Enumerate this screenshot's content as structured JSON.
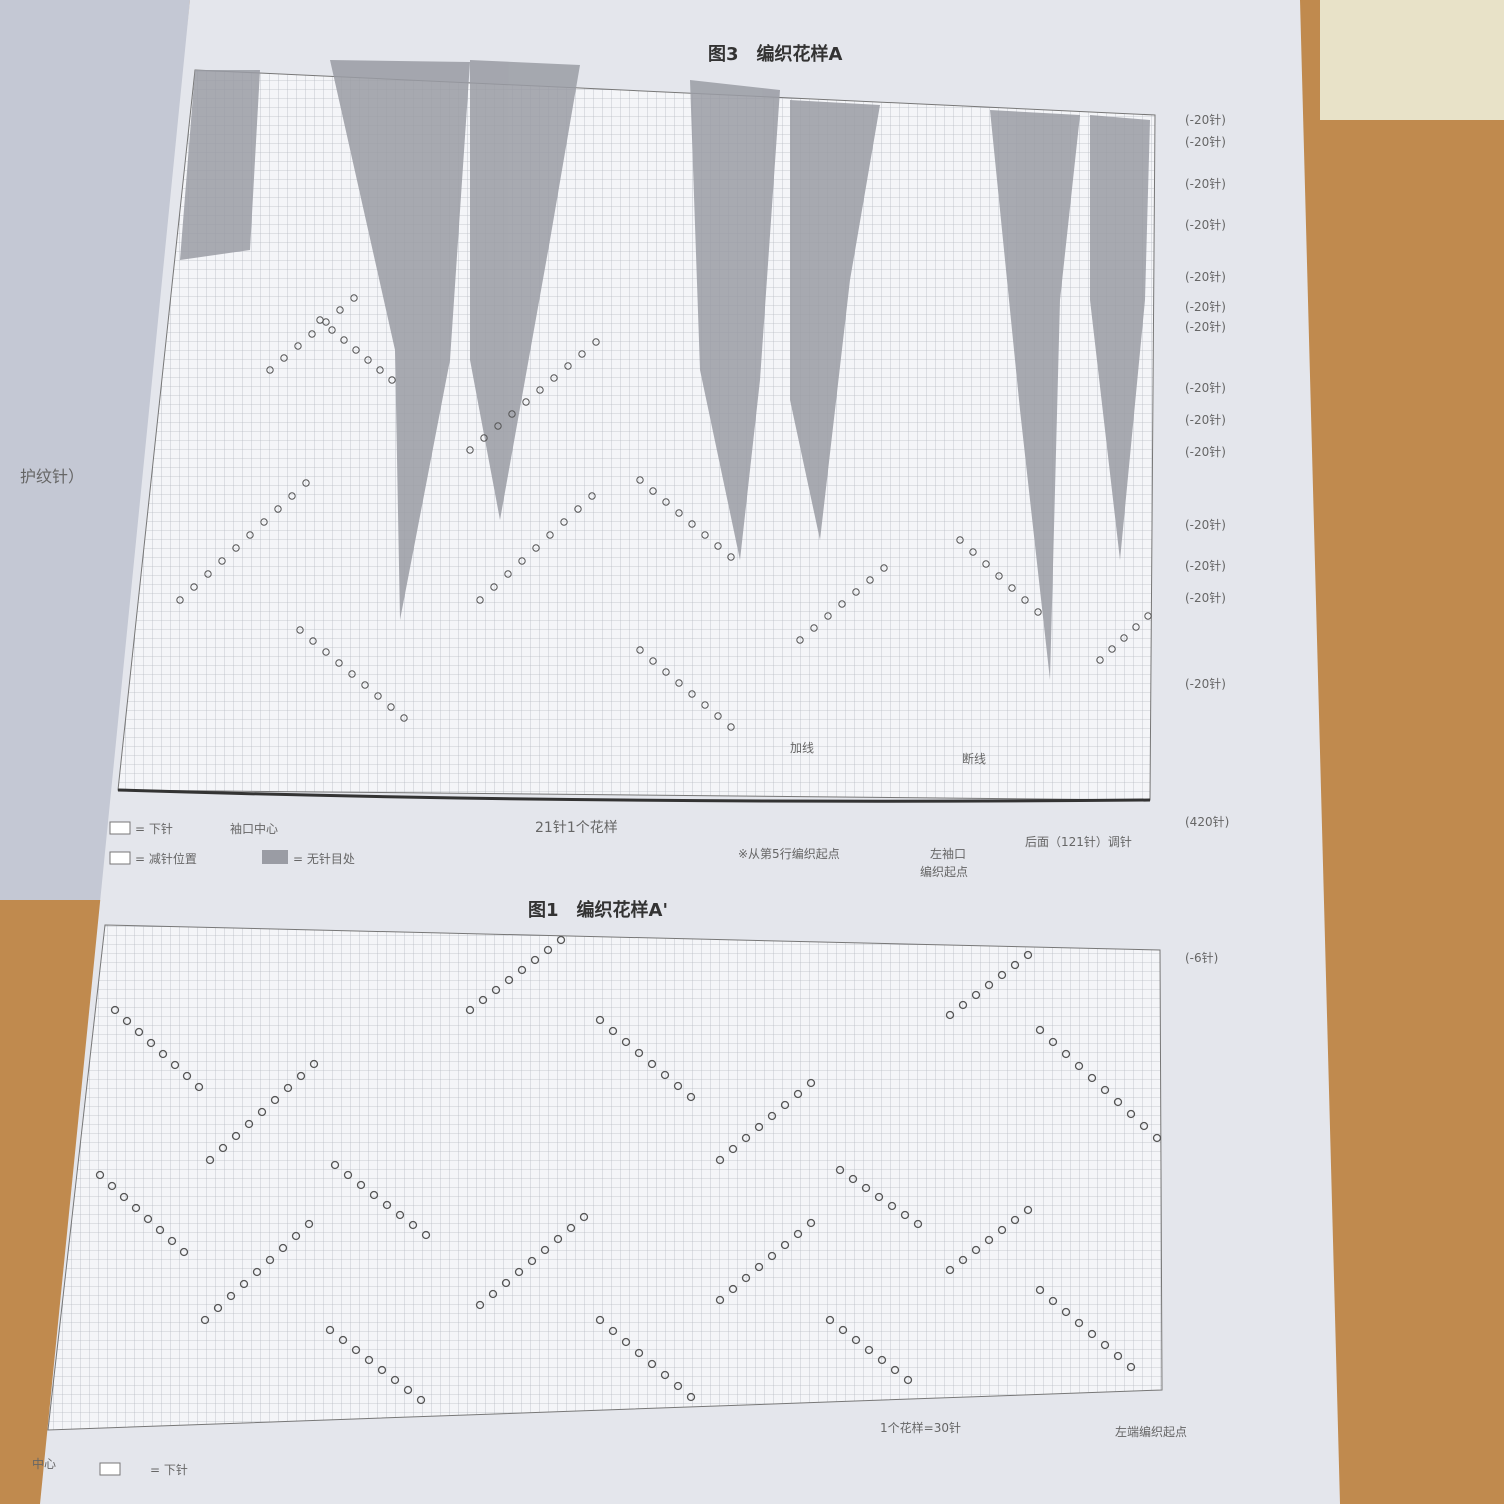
{
  "left_page": {
    "fragment": "护纹针）"
  },
  "figure3": {
    "title": "图3　编织花样A",
    "row_labels": [
      "(-20针)",
      "(-20针)",
      "(-20针)",
      "(-20针)",
      "(-20针)",
      "(-20针)",
      "(-20针)",
      "(-20针)",
      "(-20针)",
      "(-20针)",
      "(-20针)",
      "(-20针)",
      "(-20针)",
      "(-20针)"
    ],
    "bottom_row_label": "(420针)",
    "join": "加线",
    "cut": "断线",
    "pattern_repeat": "21针1个花样",
    "start_note": "※从第5行编织起点",
    "left_cuff": "左袖口",
    "left_cuff_start": "编织起点",
    "back": "后面（121针）调针",
    "legend": [
      "= 下针",
      "袖口中心",
      "= 减针位置",
      "= 无针目处"
    ]
  },
  "figure1": {
    "title": "图1　编织花样A'",
    "row_label": "(-6针)",
    "pattern_repeat": "1个花样=30针",
    "start": "左端编织起点",
    "center": "中心",
    "legend": "= 下针"
  }
}
